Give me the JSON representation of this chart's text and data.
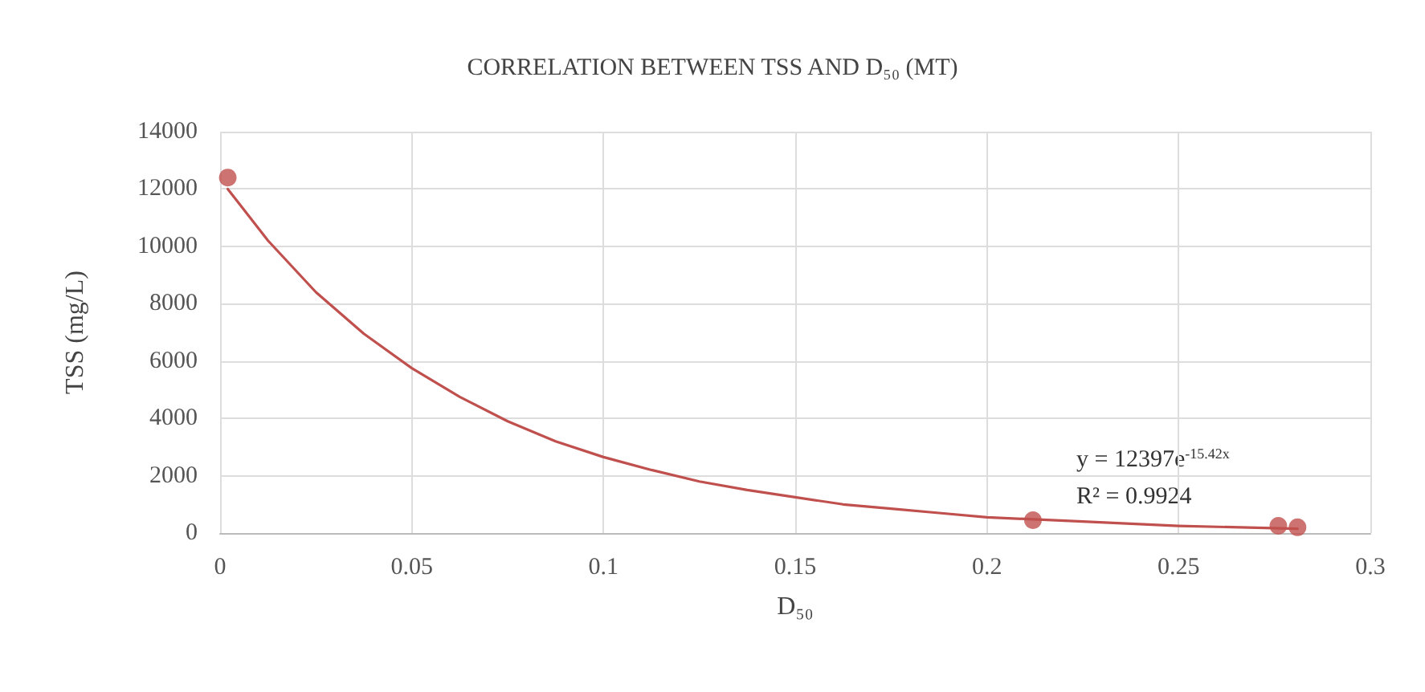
{
  "chart_data": {
    "type": "scatter",
    "title": "CORRELATION BETWEEN TSS AND D₅₀ (MT)",
    "xlabel": "D₅₀",
    "ylabel": "TSS (mg/L)",
    "series": [
      {
        "color": "#c0504d",
        "marker": "circle",
        "x": [
          0.002,
          0.212,
          0.276,
          0.281
        ],
        "values": [
          12400,
          450,
          250,
          200
        ]
      },
      {
        "type": "line",
        "color": "#c0504d",
        "marker": "none",
        "x": [
          0.002,
          0.0125,
          0.025,
          0.0375,
          0.05,
          0.0625,
          0.075,
          0.0875,
          0.1,
          0.1125,
          0.125,
          0.1375,
          0.15,
          0.1625,
          0.175,
          0.1875,
          0.2,
          0.225,
          0.25,
          0.281
        ],
        "values": [
          12000,
          10200,
          8400,
          6950,
          5750,
          4750,
          3900,
          3200,
          2650,
          2200,
          1800,
          1500,
          1250,
          1000,
          850,
          700,
          550,
          400,
          250,
          150
        ]
      }
    ],
    "annotations": [
      "y = 12397e$^{-15.42x}$",
      "R² = 0.9924"
    ],
    "xlim": [
      0,
      0.3
    ],
    "xticks": [
      0,
      0.05,
      0.1,
      0.15,
      0.2,
      0.25,
      0.3
    ],
    "ylim": [
      0,
      14000
    ],
    "yticks": [
      0,
      2000,
      4000,
      6000,
      8000,
      10000,
      12000,
      14000
    ],
    "grid": true
  }
}
